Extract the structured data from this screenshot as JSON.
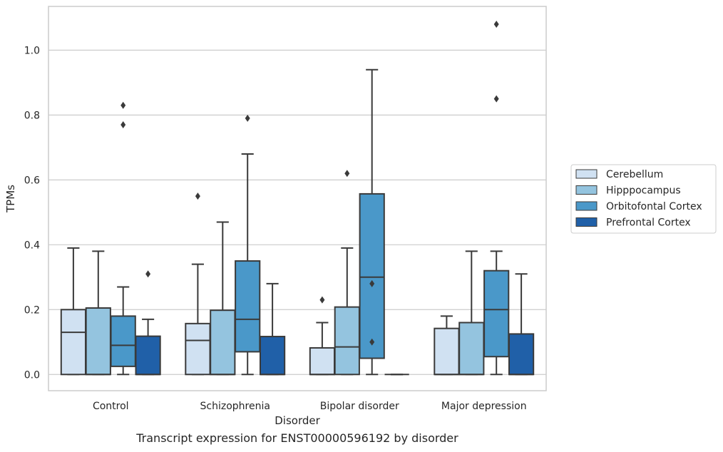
{
  "caption": "Transcript expression for ENST00000596192 by disorder",
  "chart_data": {
    "type": "box",
    "title": "",
    "xlabel": "Disorder",
    "ylabel": "TPMs",
    "ylim": [
      -0.05,
      1.135
    ],
    "yticks": [
      0.0,
      0.2,
      0.4,
      0.6,
      0.8,
      1.0
    ],
    "ytick_labels": [
      "0.0",
      "0.2",
      "0.4",
      "0.6",
      "0.8",
      "1.0"
    ],
    "grid": "horizontal",
    "legend_position": "right",
    "categories": [
      "Control",
      "Schizophrenia",
      "Bipolar disorder",
      "Major depression"
    ],
    "series": [
      {
        "name": "Cerebellum",
        "color": "#d0e1f2",
        "boxes": [
          {
            "whislo": 0.0,
            "q1": 0.0,
            "med": 0.13,
            "q3": 0.2,
            "whishi": 0.39,
            "fliers": []
          },
          {
            "whislo": 0.0,
            "q1": 0.0,
            "med": 0.105,
            "q3": 0.157,
            "whishi": 0.34,
            "fliers": [
              0.55
            ]
          },
          {
            "whislo": 0.0,
            "q1": 0.0,
            "med": 0.0,
            "q3": 0.082,
            "whishi": 0.16,
            "fliers": [
              0.23
            ]
          },
          {
            "whislo": 0.0,
            "q1": 0.0,
            "med": 0.0,
            "q3": 0.142,
            "whishi": 0.18,
            "fliers": []
          }
        ]
      },
      {
        "name": "Hipppocampus",
        "color": "#94c4df",
        "boxes": [
          {
            "whislo": 0.0,
            "q1": 0.0,
            "med": 0.0,
            "q3": 0.205,
            "whishi": 0.38,
            "fliers": []
          },
          {
            "whislo": 0.0,
            "q1": 0.0,
            "med": 0.0,
            "q3": 0.198,
            "whishi": 0.47,
            "fliers": []
          },
          {
            "whislo": 0.0,
            "q1": 0.0,
            "med": 0.085,
            "q3": 0.208,
            "whishi": 0.39,
            "fliers": [
              0.62
            ]
          },
          {
            "whislo": 0.0,
            "q1": 0.0,
            "med": 0.0,
            "q3": 0.16,
            "whishi": 0.38,
            "fliers": []
          }
        ]
      },
      {
        "name": "Orbitofontal Cortex",
        "color": "#4a98c9",
        "boxes": [
          {
            "whislo": 0.0,
            "q1": 0.025,
            "med": 0.09,
            "q3": 0.18,
            "whishi": 0.27,
            "fliers": [
              0.77,
              0.83
            ]
          },
          {
            "whislo": 0.0,
            "q1": 0.07,
            "med": 0.17,
            "q3": 0.35,
            "whishi": 0.68,
            "fliers": [
              0.79
            ]
          },
          {
            "whislo": 0.0,
            "q1": 0.05,
            "med": 0.3,
            "q3": 0.557,
            "whishi": 0.94,
            "fliers": [
              0.1,
              0.28
            ]
          },
          {
            "whislo": 0.0,
            "q1": 0.055,
            "med": 0.2,
            "q3": 0.32,
            "whishi": 0.38,
            "fliers": [
              0.85,
              1.08
            ]
          }
        ]
      },
      {
        "name": "Prefrontal Cortex",
        "color": "#2060a8",
        "boxes": [
          {
            "whislo": 0.0,
            "q1": 0.0,
            "med": 0.0,
            "q3": 0.118,
            "whishi": 0.17,
            "fliers": [
              0.31
            ]
          },
          {
            "whislo": 0.0,
            "q1": 0.0,
            "med": 0.0,
            "q3": 0.117,
            "whishi": 0.28,
            "fliers": []
          },
          {
            "whislo": 0.0,
            "q1": 0.0,
            "med": 0.0,
            "q3": 0.0,
            "whishi": 0.0,
            "fliers": []
          },
          {
            "whislo": 0.0,
            "q1": 0.0,
            "med": 0.0,
            "q3": 0.125,
            "whishi": 0.31,
            "fliers": []
          }
        ]
      }
    ]
  }
}
